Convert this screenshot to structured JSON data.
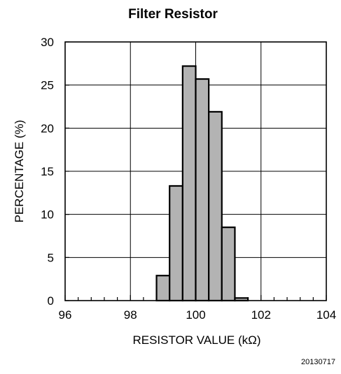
{
  "chart_data": {
    "type": "bar",
    "title": "Filter Resistor",
    "xlabel": "RESISTOR VALUE (kΩ)",
    "ylabel": "PERCENTAGE (%)",
    "xlim": [
      96,
      104
    ],
    "ylim": [
      0,
      30
    ],
    "x_ticks": [
      96,
      98,
      100,
      102,
      104
    ],
    "y_ticks": [
      0,
      5,
      10,
      15,
      20,
      25,
      30
    ],
    "x_minor_step": 0.4,
    "grid": true,
    "bins": [
      {
        "start": 98.8,
        "end": 99.2,
        "value": 2.9
      },
      {
        "start": 99.2,
        "end": 99.6,
        "value": 13.3
      },
      {
        "start": 99.6,
        "end": 100.0,
        "value": 27.2
      },
      {
        "start": 100.0,
        "end": 100.4,
        "value": 25.7
      },
      {
        "start": 100.4,
        "end": 100.8,
        "value": 21.9
      },
      {
        "start": 100.8,
        "end": 101.2,
        "value": 8.5
      },
      {
        "start": 101.2,
        "end": 101.6,
        "value": 0.3
      }
    ],
    "bar_fill": "#b3b3b3",
    "bar_stroke": "#000000"
  },
  "figure_id": "20130717"
}
